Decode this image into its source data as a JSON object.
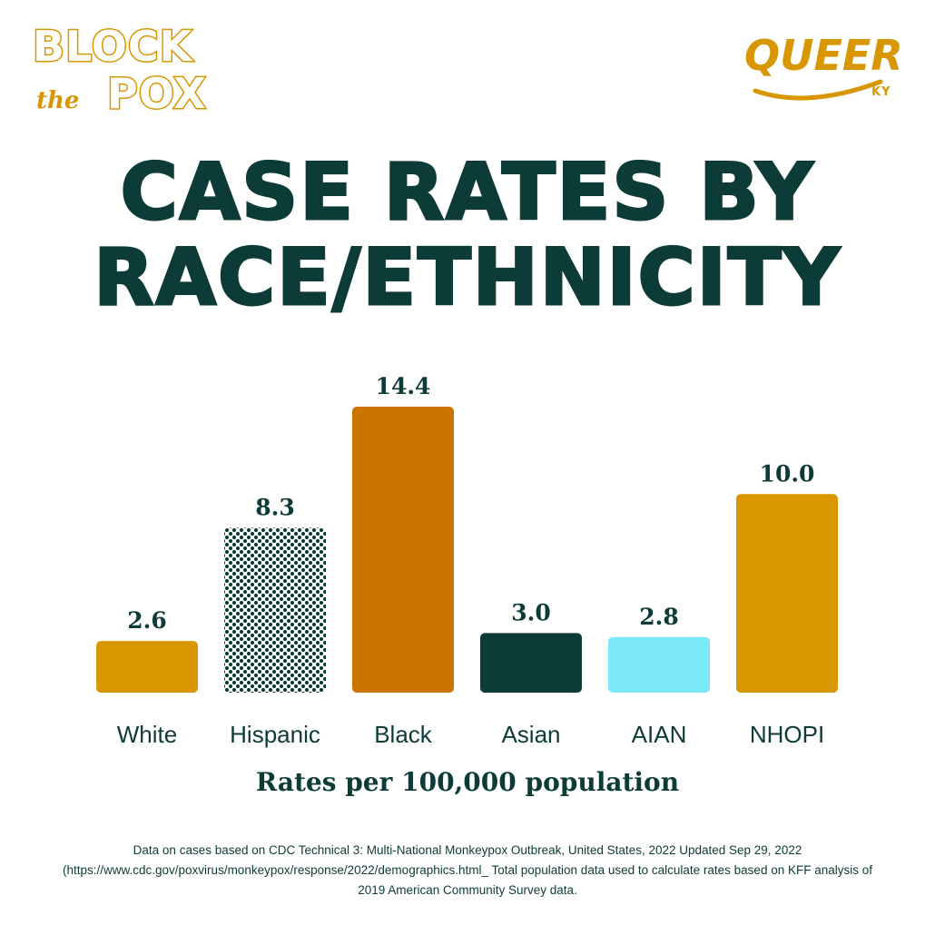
{
  "logos": {
    "left": {
      "line1": "BLOCK",
      "line2": "the",
      "line3": "POX"
    },
    "right": {
      "main": "QUEER",
      "sub": "KY"
    }
  },
  "chart_data": {
    "type": "bar",
    "title": "CASE RATES BY RACE/ETHNICITY",
    "xlabel": "Rates per 100,000 population",
    "ylabel": "",
    "categories": [
      "White",
      "Hispanic",
      "Black",
      "Asian",
      "AIAN",
      "NHOPI"
    ],
    "values": [
      2.6,
      8.3,
      14.4,
      3.0,
      2.8,
      10.0
    ],
    "value_labels": [
      "2.6",
      "8.3",
      "14.4",
      "3.0",
      "2.8",
      "10.0"
    ],
    "bar_colors": [
      "#d89600",
      "pattern-dots",
      "#cc7400",
      "#0d3b37",
      "#7ce9fb",
      "#d89600"
    ],
    "ylim": [
      0,
      14.4
    ],
    "grid": false,
    "legend": "none"
  },
  "colors": {
    "primary_dark": "#0d3b37",
    "gold": "#d89600",
    "orange": "#cc7400",
    "light_blue": "#7ce9fb"
  },
  "footnote": "Data on cases based on CDC Technical 3: Multi-National Monkeypox Outbreak, United States, 2022 Updated Sep 29, 2022 (https://www.cdc.gov/poxvirus/monkeypox/response/2022/demographics.html_ Total population data used to calculate rates based on KFF analysis of 2019 American Community Survey data."
}
